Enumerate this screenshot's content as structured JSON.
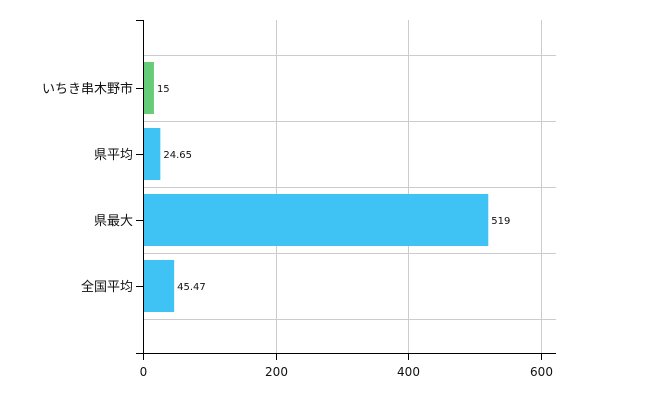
{
  "chart_data": {
    "type": "bar",
    "orientation": "horizontal",
    "categories": [
      "いちき串木野市",
      "県平均",
      "県最大",
      "全国平均"
    ],
    "values": [
      15,
      24.65,
      519,
      45.47
    ],
    "value_labels": [
      "15",
      "24.65",
      "519",
      "45.47"
    ],
    "bar_colors": [
      "#66cc77",
      "#3fc3f5",
      "#3fc3f5",
      "#3fc3f5"
    ],
    "xlim": [
      0,
      600
    ],
    "xticks": [
      0,
      200,
      400,
      600
    ],
    "xtick_labels": [
      "0",
      "200",
      "400",
      "600"
    ],
    "grid": true,
    "grid_color": "#cccccc",
    "axis_color": "#000000"
  }
}
